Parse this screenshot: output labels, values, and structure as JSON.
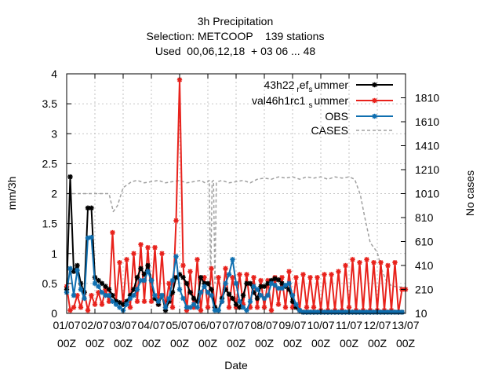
{
  "chart_data": {
    "type": "line",
    "title_lines": [
      "3h Precipitation",
      "Selection: METCOOP    139 stations",
      "Used  00,06,12,18  + 03 06 ... 48"
    ],
    "xlabel": "Date",
    "ylabel": "mm/3h",
    "y2label": "No cases",
    "xlim": [
      0,
      12
    ],
    "ylim": [
      0,
      4
    ],
    "y2lim": [
      10,
      2010
    ],
    "x_ticks": [
      {
        "top": "01/07",
        "bottom": "00Z",
        "at": 0
      },
      {
        "top": "02/07",
        "bottom": "00Z",
        "at": 1
      },
      {
        "top": "03/07",
        "bottom": "00Z",
        "at": 2
      },
      {
        "top": "04/07",
        "bottom": "00Z",
        "at": 3
      },
      {
        "top": "05/07",
        "bottom": "00Z",
        "at": 4
      },
      {
        "top": "06/07",
        "bottom": "00Z",
        "at": 5
      },
      {
        "top": "07/07",
        "bottom": "00Z",
        "at": 6
      },
      {
        "top": "08/07",
        "bottom": "00Z",
        "at": 7
      },
      {
        "top": "09/07",
        "bottom": "00Z",
        "at": 8
      },
      {
        "top": "10/07",
        "bottom": "00Z",
        "at": 9
      },
      {
        "top": "11/07",
        "bottom": "00Z",
        "at": 10
      },
      {
        "top": "12/07",
        "bottom": "00Z",
        "at": 11
      },
      {
        "top": "13/07",
        "bottom": "00Z",
        "at": 12
      }
    ],
    "y_ticks": [
      "0",
      "0.5",
      "1",
      "1.5",
      "2",
      "2.5",
      "3",
      "3.5",
      "4"
    ],
    "y2_ticks": [
      "10",
      "210",
      "410",
      "610",
      "810",
      "1010",
      "1210",
      "1410",
      "1610",
      "1810"
    ],
    "grid": true,
    "legend_position": "top-right",
    "series": [
      {
        "name": "43h22",
        "name_sub1": "r",
        "name_mid": "ef",
        "name_sub2": "s",
        "name_tail": "ummer",
        "color": "#000000",
        "marker": "star",
        "x": [
          0,
          0.125,
          0.25,
          0.375,
          0.5,
          0.625,
          0.75,
          0.875,
          1,
          1.125,
          1.25,
          1.375,
          1.5,
          1.625,
          1.75,
          1.875,
          2,
          2.125,
          2.25,
          2.375,
          2.5,
          2.625,
          2.75,
          2.875,
          3,
          3.125,
          3.25,
          3.375,
          3.5,
          3.625,
          3.75,
          3.875,
          4,
          4.125,
          4.25,
          4.375,
          4.5,
          4.625,
          4.75,
          4.875,
          5,
          5.125,
          5.25,
          5.375,
          5.5,
          5.625,
          5.75,
          5.875,
          6,
          6.125,
          6.25,
          6.375,
          6.5,
          6.625,
          6.75,
          6.875,
          7,
          7.125,
          7.25,
          7.375,
          7.5,
          7.625,
          7.75,
          7.875,
          8,
          8.125,
          8.25,
          8.375,
          8.5,
          8.625,
          8.75,
          8.875,
          9,
          9.125,
          9.25,
          9.375,
          9.5,
          9.625,
          9.75,
          9.875,
          10,
          10.125,
          10.25,
          10.375,
          10.5,
          10.625,
          10.75,
          10.875,
          11,
          11.125,
          11.25,
          11.375,
          11.5,
          11.625,
          11.75,
          11.875
        ],
        "y": [
          0.4,
          2.28,
          0.7,
          0.8,
          0.5,
          0.35,
          1.76,
          1.76,
          0.6,
          0.55,
          0.5,
          0.45,
          0.4,
          0.3,
          0.2,
          0.18,
          0.15,
          0.2,
          0.3,
          0.4,
          0.6,
          0.75,
          0.65,
          0.8,
          0.55,
          0.25,
          0.15,
          0.3,
          0.05,
          0.2,
          0.35,
          0.6,
          0.65,
          0.6,
          0.5,
          0.35,
          0.25,
          0.2,
          0.6,
          0.5,
          0.5,
          0.4,
          0.1,
          0.05,
          0.25,
          0.4,
          0.32,
          0.25,
          0.15,
          0.1,
          0.3,
          0.5,
          0.5,
          0.35,
          0.25,
          0.45,
          0.45,
          0.5,
          0.55,
          0.58,
          0.56,
          0.5,
          0.45,
          0.4,
          0.2,
          0.1,
          0.05,
          0.02,
          0.02,
          0.02,
          0.02,
          0.02,
          0.02,
          0.02,
          0.02,
          0.02,
          0.02,
          0.02,
          0.02,
          0.02,
          0.02,
          0.02,
          0.02,
          0.02,
          0.02,
          0.02,
          0.02,
          0.02,
          0.02,
          0.02,
          0.02,
          0.02,
          0.02,
          0.02,
          0.02,
          0.02
        ]
      },
      {
        "name": "val46h1rc1",
        "name_sub1": "",
        "name_mid": "",
        "name_sub2": "s",
        "name_tail": "ummer",
        "color": "#e8221c",
        "marker": "star",
        "x": [
          0,
          0.125,
          0.25,
          0.375,
          0.5,
          0.625,
          0.75,
          0.875,
          1,
          1.125,
          1.25,
          1.375,
          1.5,
          1.625,
          1.75,
          1.875,
          2,
          2.125,
          2.25,
          2.375,
          2.5,
          2.625,
          2.75,
          2.875,
          3,
          3.125,
          3.25,
          3.375,
          3.5,
          3.625,
          3.75,
          3.875,
          4,
          4.125,
          4.25,
          4.375,
          4.5,
          4.625,
          4.75,
          4.875,
          5,
          5.125,
          5.25,
          5.375,
          5.5,
          5.625,
          5.75,
          5.875,
          6,
          6.125,
          6.25,
          6.375,
          6.5,
          6.625,
          6.75,
          6.875,
          7,
          7.125,
          7.25,
          7.375,
          7.5,
          7.625,
          7.75,
          7.875,
          8,
          8.125,
          8.25,
          8.375,
          8.5,
          8.625,
          8.75,
          8.875,
          9,
          9.125,
          9.25,
          9.375,
          9.5,
          9.625,
          9.75,
          9.875,
          10,
          10.125,
          10.25,
          10.375,
          10.5,
          10.625,
          10.75,
          10.875,
          11,
          11.125,
          11.25,
          11.375,
          11.5,
          11.625,
          11.75,
          11.875,
          12
        ],
        "y": [
          0.45,
          0.05,
          0.1,
          0.3,
          0.1,
          0.35,
          0.05,
          0.3,
          0.15,
          0.35,
          0.15,
          0.4,
          0.2,
          1.35,
          0.2,
          0.85,
          0.15,
          0.9,
          0.1,
          1.0,
          0.2,
          1.15,
          0.2,
          1.1,
          0.2,
          1.1,
          0.15,
          1.0,
          0.1,
          0.5,
          0.1,
          1.55,
          3.9,
          0.8,
          0.05,
          0.7,
          0.1,
          0.9,
          0.05,
          0.6,
          0.1,
          0.75,
          0.1,
          0.6,
          0.2,
          0.75,
          0.1,
          0.6,
          0.1,
          0.65,
          0.15,
          0.65,
          0.1,
          0.6,
          0.1,
          0.55,
          0.1,
          0.55,
          0.05,
          0.6,
          0.15,
          0.6,
          0.1,
          0.7,
          0.1,
          0.6,
          0.05,
          0.65,
          0.1,
          0.6,
          0.1,
          0.6,
          0.05,
          0.65,
          0.05,
          0.65,
          0.05,
          0.7,
          0.05,
          0.8,
          0.1,
          0.9,
          0.05,
          0.85,
          0.05,
          0.9,
          0.05,
          0.85,
          0.05,
          0.85,
          0.05,
          0.8,
          0.05,
          0.85,
          0.02,
          0.4,
          0.4
        ]
      },
      {
        "name": "OBS",
        "color": "#0f6fb0",
        "marker": "star",
        "x": [
          0,
          0.125,
          0.25,
          0.375,
          0.5,
          0.625,
          0.75,
          0.875,
          1,
          1.125,
          1.25,
          1.375,
          1.5,
          1.625,
          1.75,
          1.875,
          2,
          2.125,
          2.25,
          2.375,
          2.5,
          2.625,
          2.75,
          2.875,
          3,
          3.125,
          3.25,
          3.375,
          3.5,
          3.625,
          3.75,
          3.875,
          4,
          4.125,
          4.25,
          4.375,
          4.5,
          4.625,
          4.75,
          4.875,
          5,
          5.125,
          5.25,
          5.375,
          5.5,
          5.625,
          5.75,
          5.875,
          6,
          6.125,
          6.25,
          6.375,
          6.5,
          6.625,
          6.75,
          6.875,
          7,
          7.125,
          7.25,
          7.375,
          7.5,
          7.625,
          7.75,
          7.875,
          8,
          8.125,
          8.25,
          8.375,
          8.5,
          8.625,
          8.75,
          8.875,
          9,
          9.125,
          9.25,
          9.375,
          9.5,
          9.625,
          9.75,
          9.875,
          10,
          10.125,
          10.25,
          10.375,
          10.5,
          10.625,
          10.75,
          10.875,
          11,
          11.125,
          11.25,
          11.375,
          11.5,
          11.625,
          11.75,
          11.875
        ],
        "y": [
          0.35,
          0.75,
          0.3,
          0.72,
          0.4,
          0.25,
          1.26,
          1.27,
          0.5,
          0.45,
          0.35,
          0.3,
          0.3,
          0.2,
          0.15,
          0.1,
          0.05,
          0.15,
          0.25,
          0.3,
          0.4,
          0.55,
          0.55,
          0.7,
          0.55,
          0.3,
          0.2,
          0.3,
          0.1,
          0.25,
          0.55,
          0.95,
          0.4,
          0.25,
          0.1,
          0.1,
          0.15,
          0.1,
          0.35,
          0.45,
          0.35,
          0.3,
          0.05,
          0.05,
          0.2,
          0.5,
          0.65,
          0.9,
          0.5,
          0.2,
          0.1,
          0.05,
          0.2,
          0.45,
          0.4,
          0.3,
          0.25,
          0.3,
          0.5,
          0.47,
          0.42,
          0.42,
          0.47,
          0.5,
          0.3,
          0.15,
          0.05,
          0.02,
          0.02,
          0.02,
          0.02,
          0.02,
          0.02,
          0.02,
          0.02,
          0.02,
          0.02,
          0.02,
          0.02,
          0.02,
          0.02,
          0.02,
          0.02,
          0.02,
          0.02,
          0.02,
          0.02,
          0.02,
          0.02,
          0.02,
          0.02,
          0.02,
          0.02,
          0.02,
          0.02,
          0.02
        ]
      },
      {
        "name": "CASES",
        "color": "#a0a0a0",
        "axis": "y2",
        "dashed": true,
        "x": [
          0,
          1.5,
          1.65,
          1.8,
          2.0,
          2.3,
          2.5,
          2.75,
          3,
          3.25,
          3.5,
          3.75,
          4,
          4.25,
          4.5,
          4.75,
          4.9,
          5.0,
          5.05,
          5.1,
          5.15,
          5.2,
          5.25,
          5.3,
          5.35,
          5.5,
          5.75,
          6,
          6.25,
          6.5,
          6.75,
          7,
          7.25,
          7.5,
          7.75,
          8,
          8.25,
          8.5,
          8.75,
          9,
          9.25,
          9.5,
          9.75,
          10,
          10.2,
          10.4,
          10.55,
          10.75,
          11,
          11.15,
          11.3,
          11.5,
          11.75,
          12
        ],
        "y": [
          1010,
          1010,
          860,
          910,
          1060,
          1110,
          1120,
          1100,
          1110,
          1120,
          1100,
          1110,
          1120,
          1100,
          1110,
          1120,
          1100,
          1110,
          1120,
          250,
          1110,
          1120,
          260,
          1100,
          1110,
          1120,
          1100,
          1110,
          1120,
          1100,
          1130,
          1140,
          1130,
          1150,
          1140,
          1150,
          1130,
          1150,
          1140,
          1150,
          1130,
          1150,
          1140,
          1150,
          1130,
          1000,
          820,
          600,
          520,
          380,
          290,
          240,
          230,
          230
        ]
      }
    ]
  }
}
